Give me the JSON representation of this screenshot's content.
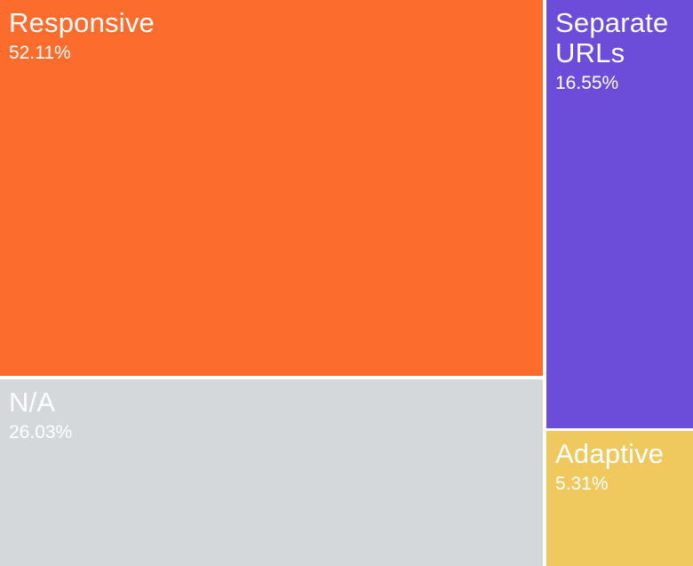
{
  "chart_data": {
    "type": "treemap",
    "title": "",
    "legend": "none",
    "items": [
      {
        "id": "responsive",
        "label": "Responsive",
        "value": 52.11,
        "value_display": "52.11%",
        "color": "#fb6c2d",
        "text_color": "#ffffff"
      },
      {
        "id": "na",
        "label": "N/A",
        "value": 26.03,
        "value_display": "26.03%",
        "color": "#d4d8da",
        "text_color": "#ffffff"
      },
      {
        "id": "separate",
        "label": "Separate URLs",
        "value": 16.55,
        "value_display": "16.55%",
        "color": "#6b4dd9",
        "text_color": "#ffffff"
      },
      {
        "id": "adaptive",
        "label": "Adaptive",
        "value": 5.31,
        "value_display": "5.31%",
        "color": "#efc95e",
        "text_color": "#ffffff"
      }
    ],
    "gutter_color": "#ffffff"
  }
}
